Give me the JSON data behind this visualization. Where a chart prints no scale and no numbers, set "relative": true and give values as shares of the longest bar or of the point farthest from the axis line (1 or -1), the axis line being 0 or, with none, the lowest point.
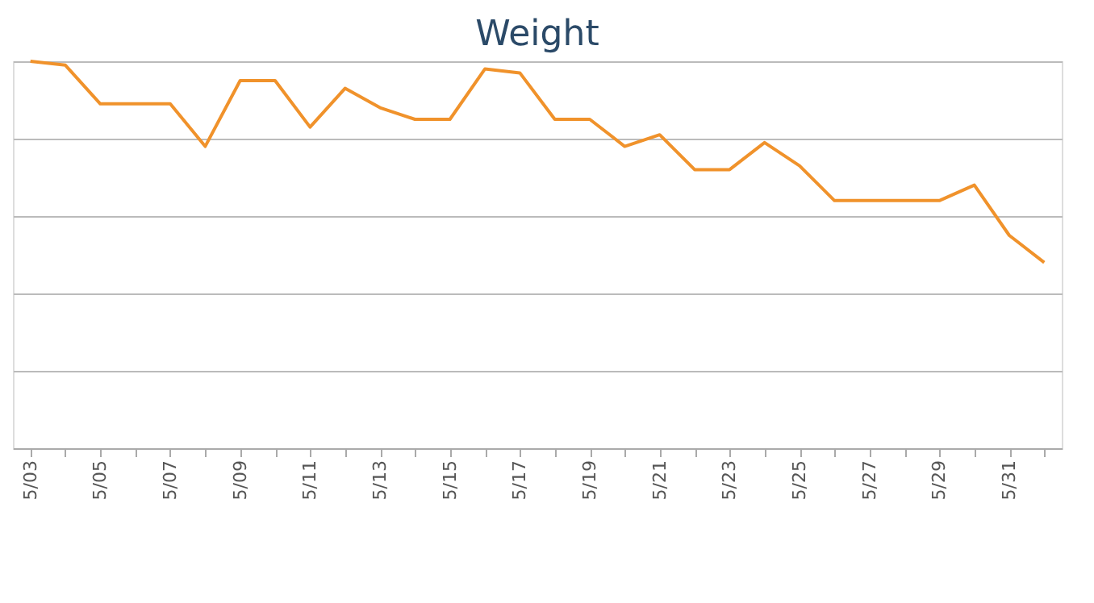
{
  "chart_data": {
    "type": "line",
    "title": "Weight",
    "relative": true,
    "grid": "y",
    "legend": false,
    "marker": "none",
    "line_style": "solid",
    "categories": [
      "5/03",
      null,
      "5/05",
      null,
      "5/07",
      null,
      "5/09",
      null,
      "5/11",
      null,
      "5/13",
      null,
      "5/15",
      null,
      "5/17",
      null,
      "5/19",
      null,
      "5/21",
      null,
      "5/23",
      null,
      "5/25",
      null,
      "5/27",
      null,
      "5/29",
      null,
      "5/31",
      null
    ],
    "series": [
      {
        "color": "#f0922b",
        "values": [
          1.0,
          0.99,
          0.89,
          0.89,
          0.89,
          0.78,
          0.95,
          0.95,
          0.83,
          0.93,
          0.88,
          0.85,
          0.85,
          0.98,
          0.97,
          0.85,
          0.85,
          0.78,
          0.81,
          0.72,
          0.72,
          0.79,
          0.73,
          0.64,
          0.64,
          0.64,
          0.64,
          0.68,
          0.55,
          0.48
        ]
      }
    ]
  }
}
